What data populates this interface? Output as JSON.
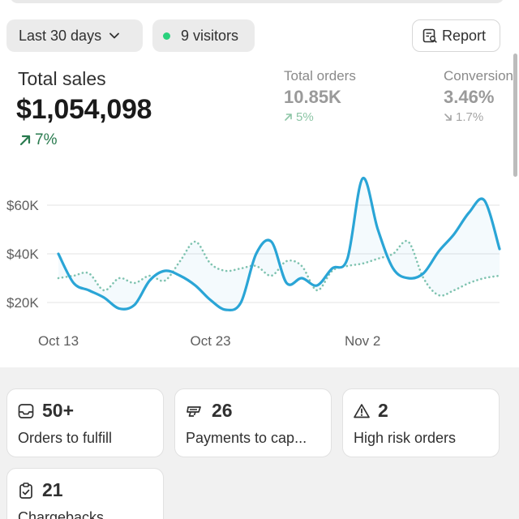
{
  "filters": {
    "date_range_label": "Last 30 days",
    "visitors_label": "9 visitors",
    "report_label": "Report"
  },
  "metrics": {
    "primary": {
      "label": "Total sales",
      "value": "$1,054,098",
      "change": "7%",
      "direction": "up"
    },
    "orders": {
      "label": "Total orders",
      "value": "10.85K",
      "change": "5%",
      "direction": "up"
    },
    "conversion": {
      "label": "Conversion",
      "value": "3.46%",
      "change": "1.7%",
      "direction": "down"
    }
  },
  "chart_data": {
    "type": "line",
    "y_ticks": [
      "$20K",
      "$40K",
      "$60K"
    ],
    "x_tick_labels": [
      "Oct 13",
      "Oct 23",
      "Nov 2"
    ],
    "ylim": [
      20000,
      60000
    ],
    "grid": true,
    "series": [
      {
        "style": "solid",
        "color": "#2aa5d6",
        "values": [
          40000,
          28000,
          25000,
          22000,
          17500,
          19000,
          29000,
          33000,
          31000,
          27000,
          21000,
          17000,
          20000,
          40000,
          45000,
          28000,
          30000,
          27000,
          34000,
          38000,
          71000,
          50000,
          34000,
          30000,
          32000,
          41000,
          48000,
          57000,
          62000,
          42000
        ]
      },
      {
        "style": "dotted",
        "color": "#7fc3b0",
        "values": [
          30000,
          31000,
          32000,
          25000,
          30000,
          28000,
          31000,
          29000,
          37000,
          45000,
          36000,
          33000,
          34000,
          35000,
          31000,
          37000,
          35000,
          25000,
          33000,
          35000,
          36000,
          38000,
          40000,
          45000,
          30000,
          23000,
          25000,
          28000,
          30000,
          31000
        ]
      }
    ]
  },
  "cards": [
    {
      "icon": "inbox-icon",
      "value": "50+",
      "label": "Orders to fulfill"
    },
    {
      "icon": "payment-icon",
      "value": "26",
      "label": "Payments to cap..."
    },
    {
      "icon": "alert-icon",
      "value": "2",
      "label": "High risk orders"
    },
    {
      "icon": "clipboard-icon",
      "value": "21",
      "label": "Chargebacks"
    }
  ],
  "colors": {
    "accent_line": "#2aa5d6",
    "compare_line": "#7fc3b0",
    "positive": "#287a4e",
    "status_dot": "#29d17c"
  }
}
